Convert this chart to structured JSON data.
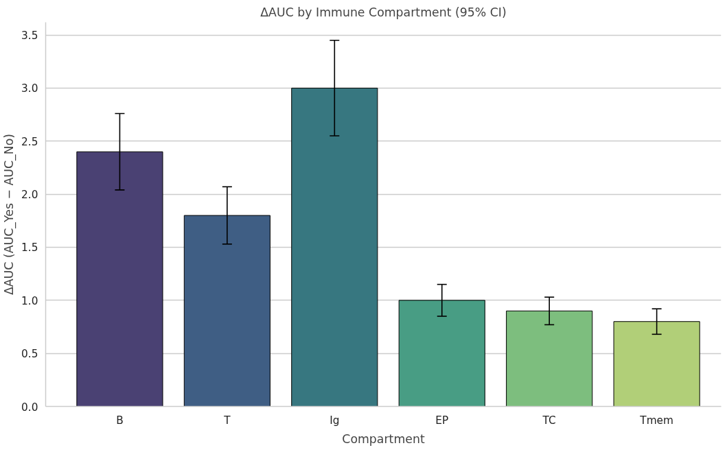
{
  "chart_data": {
    "type": "bar",
    "title": "ΔAUC by Immune Compartment (95% CI)",
    "xlabel": "Compartment",
    "ylabel": "ΔAUC (AUC_Yes − AUC_No)",
    "categories": [
      "B",
      "T",
      "Ig",
      "EP",
      "TC",
      "Tmem"
    ],
    "values": [
      2.4,
      1.8,
      3.0,
      1.0,
      0.9,
      0.8
    ],
    "colors": [
      "#4a4173",
      "#3f5e84",
      "#377780",
      "#489d84",
      "#7dbe7e",
      "#b1cf78"
    ],
    "errors": [
      [
        2.04,
        2.76
      ],
      [
        1.53,
        2.07
      ],
      [
        2.55,
        3.45
      ],
      [
        0.85,
        1.15
      ],
      [
        0.77,
        1.03
      ],
      [
        0.68,
        0.92
      ]
    ],
    "ylim": [
      0,
      3.62
    ],
    "yticks": [
      {
        "value": 0,
        "label": "0.0"
      },
      0.5,
      {
        "value": 1,
        "label": "1.0"
      },
      1.5,
      {
        "value": 2,
        "label": "2.0"
      },
      2.5,
      {
        "value": 3,
        "label": "3.0"
      },
      3.5
    ],
    "grid": "y"
  }
}
